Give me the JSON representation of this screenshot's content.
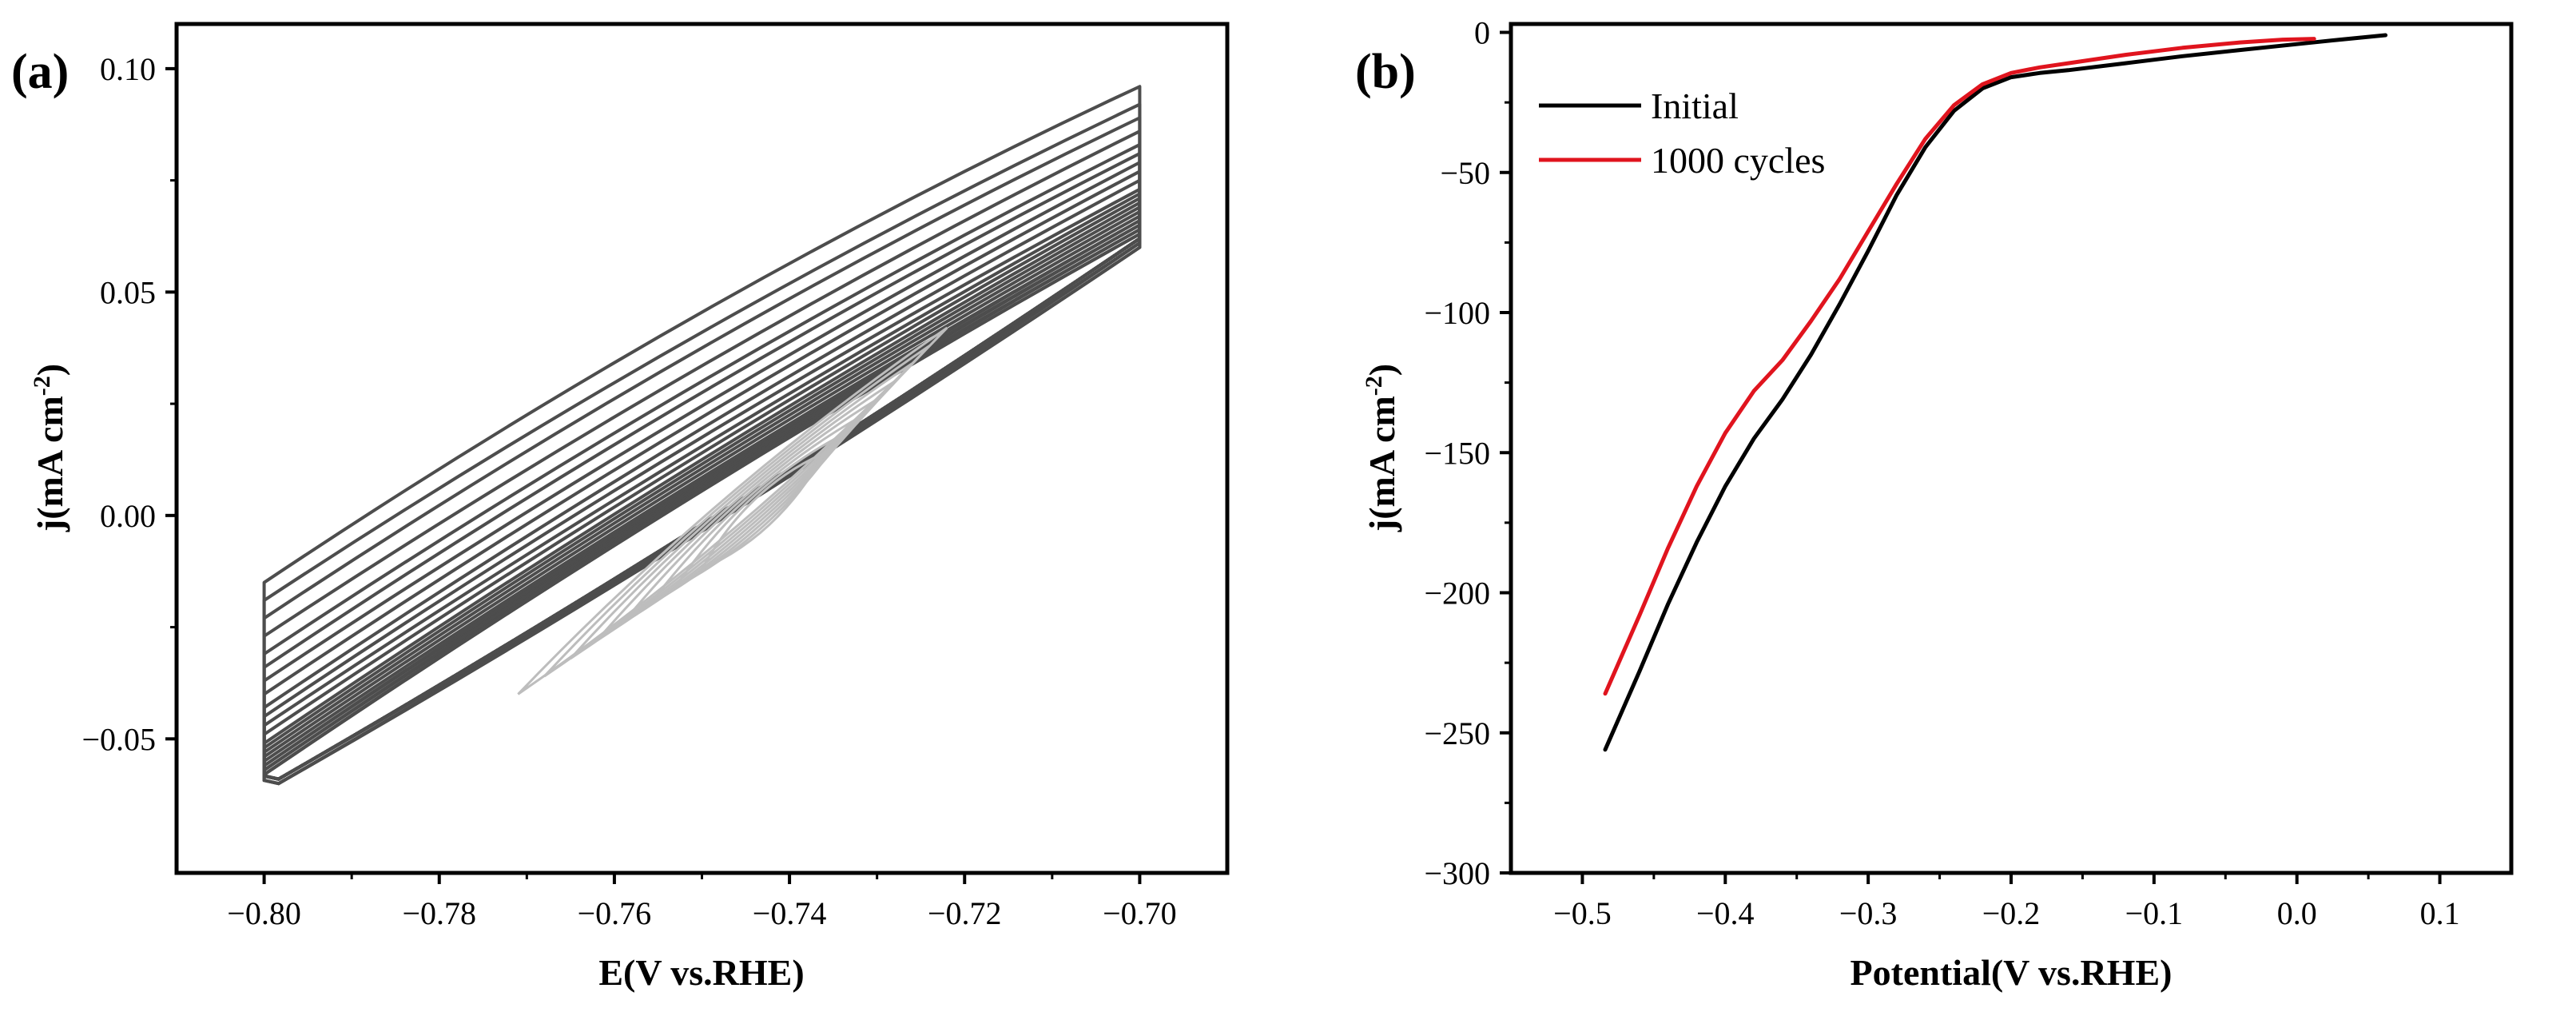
{
  "chart_data": [
    {
      "id": "a",
      "type": "line",
      "panel_label": "(a)",
      "title": "",
      "xlabel": "E(V vs.RHE)",
      "ylabel_main": "j(mA cm",
      "ylabel_sup": "-2",
      "ylabel_close": ")",
      "xlim": [
        -0.81,
        -0.69
      ],
      "ylim": [
        -0.08,
        0.11
      ],
      "xticks": [
        -0.8,
        -0.78,
        -0.76,
        -0.74,
        -0.72,
        -0.7
      ],
      "xtick_labels": [
        "−0.80",
        "−0.78",
        "−0.76",
        "−0.74",
        "−0.72",
        "−0.70"
      ],
      "yticks": [
        -0.05,
        0.0,
        0.05,
        0.1
      ],
      "ytick_labels": [
        "−0.05",
        "0.00",
        "0.05",
        "0.10"
      ],
      "line_color": "#4d4d4d",
      "cv_loops": {
        "description_of_series": "repeated cyclic voltammograms, scan window -0.80 to -0.70 V",
        "x_start": -0.8,
        "x_end": -0.7,
        "count": 24,
        "upper_start_j": [
          -0.015,
          -0.019,
          -0.023,
          -0.027,
          -0.031,
          -0.034,
          -0.037,
          -0.04,
          -0.043,
          -0.045,
          -0.047,
          -0.049,
          -0.051,
          -0.052,
          -0.053,
          -0.054,
          -0.055,
          -0.056,
          -0.056,
          -0.057,
          -0.057,
          -0.058,
          -0.058,
          -0.058
        ],
        "upper_end_j": [
          0.096,
          0.092,
          0.089,
          0.086,
          0.083,
          0.081,
          0.079,
          0.077,
          0.075,
          0.073,
          0.072,
          0.071,
          0.07,
          0.069,
          0.068,
          0.067,
          0.066,
          0.066,
          0.065,
          0.065,
          0.064,
          0.064,
          0.063,
          0.063
        ],
        "lower_end_j": [
          0.06,
          0.06,
          0.061,
          0.061,
          0.061,
          0.061,
          0.062,
          0.062,
          0.062,
          0.062,
          0.062,
          0.062,
          0.062,
          0.062,
          0.062,
          0.062,
          0.062,
          0.062,
          0.062,
          0.062,
          0.062,
          0.062,
          0.062,
          0.062
        ],
        "lower_start_j": [
          -0.06,
          -0.06,
          -0.06,
          -0.06,
          -0.059,
          -0.059,
          -0.059,
          -0.059,
          -0.059,
          -0.059,
          -0.059,
          -0.059,
          -0.059,
          -0.059,
          -0.059,
          -0.059,
          -0.059,
          -0.059,
          -0.059,
          -0.059,
          -0.059,
          -0.059,
          -0.059,
          -0.059
        ],
        "upper_bulge_j": [
          0.01,
          0.009,
          0.009,
          0.008,
          0.008,
          0.008,
          0.007,
          0.007,
          0.007,
          0.007,
          0.006,
          0.006,
          0.006,
          0.006,
          0.006,
          0.006,
          0.006,
          0.006,
          0.006,
          0.006,
          0.006,
          0.006,
          0.006,
          0.006
        ],
        "lower_bulge_j": [
          -0.006,
          -0.006,
          -0.006,
          -0.006,
          -0.006,
          -0.006,
          -0.006,
          -0.006,
          -0.006,
          -0.006,
          -0.006,
          -0.006,
          -0.006,
          -0.006,
          -0.006,
          -0.006,
          -0.006,
          -0.006,
          -0.006,
          -0.006,
          -0.006,
          -0.006,
          -0.006,
          -0.006
        ]
      },
      "inner_loops": {
        "color": "#bdbdbd",
        "count": 8,
        "x_start": [
          -0.771,
          -0.768,
          -0.765,
          -0.762,
          -0.759,
          -0.756,
          -0.753,
          -0.75
        ],
        "x_end": [
          -0.722,
          -0.724,
          -0.726,
          -0.728,
          -0.73,
          -0.732,
          -0.734,
          -0.736
        ],
        "y_start": [
          -0.04,
          -0.036,
          -0.032,
          -0.028,
          -0.024,
          -0.02,
          -0.016,
          -0.012
        ],
        "y_end": [
          0.042,
          0.038,
          0.034,
          0.03,
          0.026,
          0.022,
          0.018,
          0.014
        ]
      }
    },
    {
      "id": "b",
      "type": "line",
      "panel_label": "(b)",
      "title": "",
      "xlabel": "Potential(V vs.RHE)",
      "ylabel_main": "j(mA cm",
      "ylabel_sup": "-2",
      "ylabel_close": ")",
      "xlim": [
        -0.55,
        0.15
      ],
      "ylim": [
        -300,
        3
      ],
      "xticks": [
        -0.5,
        -0.4,
        -0.3,
        -0.2,
        -0.1,
        0.0,
        0.1
      ],
      "xtick_labels": [
        "−0.5",
        "−0.4",
        "−0.3",
        "−0.2",
        "−0.1",
        "0.0",
        "0.1"
      ],
      "yticks": [
        0,
        -50,
        -100,
        -150,
        -200,
        -250,
        -300
      ],
      "ytick_labels": [
        "0",
        "−50",
        "−100",
        "−150",
        "−200",
        "−250",
        "−300"
      ],
      "legend_position": "top-left",
      "series": [
        {
          "name": "Initial",
          "color": "#000000",
          "x": [
            -0.484,
            -0.46,
            -0.44,
            -0.42,
            -0.4,
            -0.38,
            -0.36,
            -0.34,
            -0.32,
            -0.3,
            -0.28,
            -0.26,
            -0.24,
            -0.22,
            -0.2,
            -0.18,
            -0.16,
            -0.12,
            -0.08,
            -0.04,
            0.0,
            0.03,
            0.062
          ],
          "y": [
            -256,
            -228,
            -204,
            -182,
            -162,
            -145,
            -131,
            -115,
            -97,
            -78,
            -58,
            -41,
            -28,
            -20,
            -16,
            -14.5,
            -13.5,
            -11,
            -8.5,
            -6.3,
            -4.2,
            -2.6,
            -1
          ]
        },
        {
          "name": "1000 cycles",
          "color": "#e0141e",
          "x": [
            -0.484,
            -0.46,
            -0.44,
            -0.42,
            -0.4,
            -0.38,
            -0.36,
            -0.34,
            -0.32,
            -0.3,
            -0.28,
            -0.26,
            -0.24,
            -0.22,
            -0.2,
            -0.18,
            -0.16,
            -0.12,
            -0.08,
            -0.04,
            -0.01,
            0.012
          ],
          "y": [
            -236,
            -208,
            -184,
            -162,
            -143,
            -128,
            -117,
            -103,
            -88,
            -71,
            -54,
            -38,
            -26,
            -18.5,
            -14.5,
            -12.5,
            -11,
            -8,
            -5.5,
            -3.6,
            -2.6,
            -2.3
          ]
        }
      ]
    }
  ]
}
